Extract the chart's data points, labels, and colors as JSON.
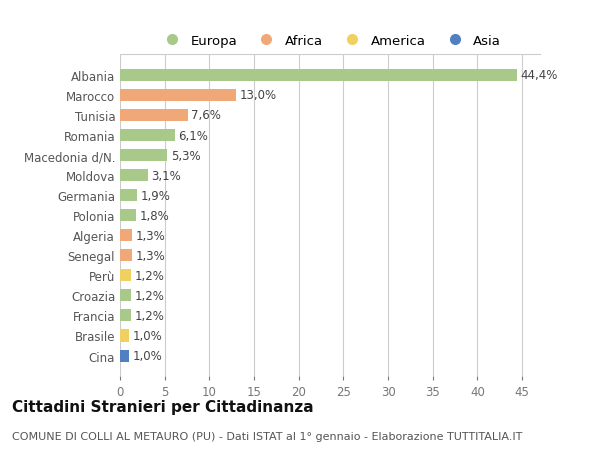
{
  "categories": [
    "Albania",
    "Marocco",
    "Tunisia",
    "Romania",
    "Macedonia d/N.",
    "Moldova",
    "Germania",
    "Polonia",
    "Algeria",
    "Senegal",
    "Perù",
    "Croazia",
    "Francia",
    "Brasile",
    "Cina"
  ],
  "values": [
    44.4,
    13.0,
    7.6,
    6.1,
    5.3,
    3.1,
    1.9,
    1.8,
    1.3,
    1.3,
    1.2,
    1.2,
    1.2,
    1.0,
    1.0
  ],
  "labels": [
    "44,4%",
    "13,0%",
    "7,6%",
    "6,1%",
    "5,3%",
    "3,1%",
    "1,9%",
    "1,8%",
    "1,3%",
    "1,3%",
    "1,2%",
    "1,2%",
    "1,2%",
    "1,0%",
    "1,0%"
  ],
  "continents": [
    "Europa",
    "Africa",
    "Africa",
    "Europa",
    "Europa",
    "Europa",
    "Europa",
    "Europa",
    "Africa",
    "Africa",
    "America",
    "Europa",
    "Europa",
    "America",
    "Asia"
  ],
  "continent_colors": {
    "Europa": "#a8c98a",
    "Africa": "#f0a878",
    "America": "#f0d060",
    "Asia": "#5080c0"
  },
  "legend_items": [
    "Europa",
    "Africa",
    "America",
    "Asia"
  ],
  "title": "Cittadini Stranieri per Cittadinanza",
  "subtitle": "COMUNE DI COLLI AL METAURO (PU) - Dati ISTAT al 1° gennaio - Elaborazione TUTTITALIA.IT",
  "xlim": [
    0,
    47
  ],
  "xticks": [
    0,
    5,
    10,
    15,
    20,
    25,
    30,
    35,
    40,
    45
  ],
  "background_color": "#ffffff",
  "plot_bg_color": "#ffffff",
  "grid_color": "#cccccc",
  "bar_height": 0.6,
  "label_fontsize": 8.5,
  "tick_fontsize": 8.5,
  "title_fontsize": 11,
  "subtitle_fontsize": 8
}
